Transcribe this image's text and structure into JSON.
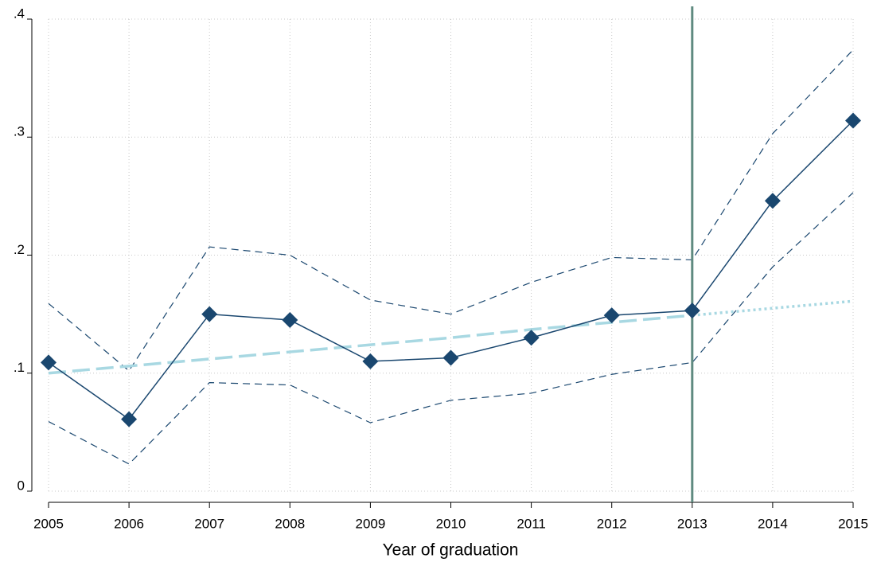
{
  "chart_data": {
    "type": "line",
    "x_label": "Year of graduation",
    "x": [
      2005,
      2006,
      2007,
      2008,
      2009,
      2010,
      2011,
      2012,
      2013,
      2014,
      2015
    ],
    "xlim": [
      2005,
      2015
    ],
    "xticks": [
      2005,
      2006,
      2007,
      2008,
      2009,
      2010,
      2011,
      2012,
      2013,
      2014,
      2015
    ],
    "ylim": [
      0,
      0.4
    ],
    "yticks": [
      0,
      {
        "value": 0.1,
        "label": ".1"
      },
      {
        "value": 0.2,
        "label": ".2"
      },
      {
        "value": 0.3,
        "label": ".3"
      },
      {
        "value": 0.4,
        "label": ".4"
      }
    ],
    "grid": true,
    "vline": {
      "x": 2013,
      "color": "#5f8a80"
    },
    "series": [
      {
        "color": "#1a476f",
        "style": "dashed",
        "values": [
          0.159,
          0.102,
          0.207,
          0.2,
          0.162,
          0.15,
          0.177,
          0.198,
          0.196,
          0.303,
          0.374
        ]
      },
      {
        "color": "#1a476f",
        "style": "dashed",
        "values": [
          0.059,
          0.023,
          0.092,
          0.09,
          0.058,
          0.077,
          0.083,
          0.099,
          0.109,
          0.19,
          0.253
        ]
      },
      {
        "color": "#a8d8e2",
        "style": "long-dash",
        "values": [
          0.1,
          0.106,
          0.112,
          0.118,
          0.124,
          0.13,
          0.137,
          0.143,
          0.149,
          null,
          null
        ]
      },
      {
        "color": "#a8d8e2",
        "style": "dotted",
        "values": [
          null,
          null,
          null,
          null,
          null,
          null,
          null,
          null,
          0.149,
          0.155,
          0.161
        ]
      },
      {
        "color": "#1a476f",
        "style": "solid",
        "marker": "diamond",
        "values": [
          0.109,
          0.061,
          0.15,
          0.145,
          0.11,
          0.113,
          0.13,
          0.149,
          0.153,
          0.246,
          0.314
        ]
      }
    ]
  }
}
